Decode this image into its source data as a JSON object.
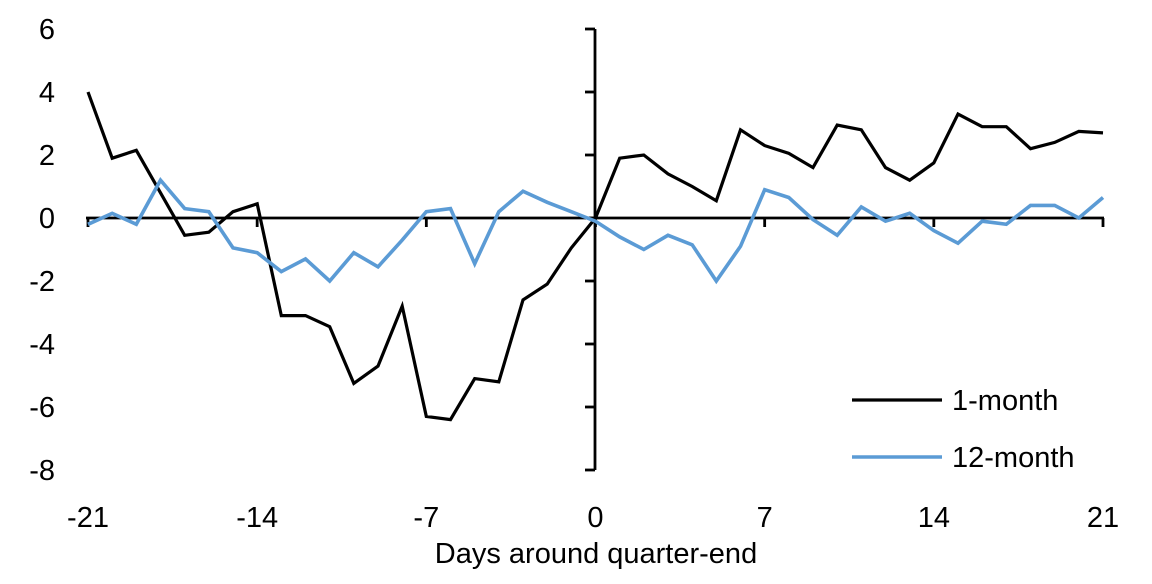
{
  "chart_data": {
    "type": "line",
    "title": "",
    "xlabel": "Days around quarter-end",
    "ylabel": "",
    "xlim": [
      -21,
      21
    ],
    "ylim": [
      -8,
      6
    ],
    "x_ticks": [
      -21,
      -14,
      -7,
      0,
      7,
      14,
      21
    ],
    "y_ticks": [
      6,
      4,
      2,
      0,
      -2,
      -4,
      -6,
      -8
    ],
    "grid": false,
    "legend_position": "lower-right",
    "x": [
      -21,
      -20,
      -19,
      -18,
      -17,
      -16,
      -15,
      -14,
      -13,
      -12,
      -11,
      -10,
      -9,
      -8,
      -7,
      -6,
      -5,
      -4,
      -3,
      -2,
      -1,
      0,
      1,
      2,
      3,
      4,
      5,
      6,
      7,
      8,
      9,
      10,
      11,
      12,
      13,
      14,
      15,
      16,
      17,
      18,
      19,
      20,
      21
    ],
    "series": [
      {
        "name": "1-month",
        "color": "#000000",
        "values": [
          4.0,
          1.9,
          2.15,
          0.8,
          -0.55,
          -0.45,
          0.2,
          0.45,
          -3.1,
          -3.1,
          -3.45,
          -5.25,
          -4.7,
          -2.8,
          -6.3,
          -6.4,
          -5.1,
          -5.2,
          -2.6,
          -2.1,
          -0.95,
          0.0,
          1.9,
          2.0,
          1.4,
          1.0,
          0.55,
          2.8,
          2.3,
          2.05,
          1.6,
          2.95,
          2.8,
          1.6,
          1.2,
          1.75,
          3.3,
          2.9,
          2.9,
          2.2,
          2.4,
          2.75,
          2.7
        ]
      },
      {
        "name": "12-month",
        "color": "#5B9BD5",
        "values": [
          -0.2,
          0.15,
          -0.2,
          1.2,
          0.3,
          0.2,
          -0.95,
          -1.1,
          -1.7,
          -1.3,
          -2.0,
          -1.1,
          -1.55,
          -0.7,
          0.2,
          0.3,
          -1.45,
          0.2,
          0.85,
          0.5,
          0.2,
          -0.1,
          -0.6,
          -1.0,
          -0.55,
          -0.85,
          -2.0,
          -0.9,
          0.9,
          0.65,
          -0.05,
          -0.55,
          0.35,
          -0.1,
          0.15,
          -0.4,
          -0.8,
          -0.1,
          -0.2,
          0.4,
          0.4,
          0.0,
          0.65
        ]
      }
    ]
  },
  "colors": {
    "background": "#FFFFFF",
    "axis": "#000000",
    "text": "#000000",
    "series_1_month": "#000000",
    "series_12_month": "#5B9BD5"
  }
}
